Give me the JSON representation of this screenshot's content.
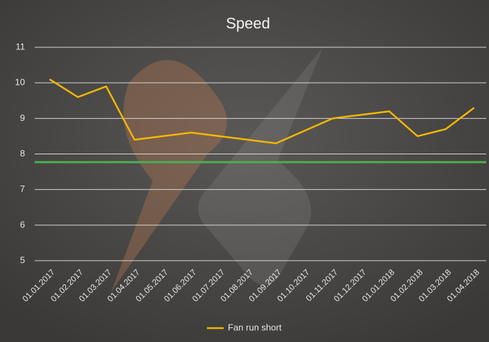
{
  "chart_data": {
    "type": "line",
    "title": "Speed",
    "categories": [
      "01.01.2017",
      "01.02.2017",
      "01.03.2017",
      "01.04.2017",
      "01.05.2017",
      "01.06.2017",
      "01.07.2017",
      "01.08.2017",
      "01.09.2017",
      "01.10.2017",
      "01.11.2017",
      "01.12.2017",
      "01.01.2018",
      "01.02.2018",
      "01.03.2018",
      "01.04.2018"
    ],
    "series": [
      {
        "name": "Fan run short",
        "color": "#f5b800",
        "values": [
          10.1,
          9.6,
          9.9,
          8.4,
          8.5,
          8.6,
          8.5,
          8.4,
          8.3,
          8.65,
          9.0,
          9.1,
          9.2,
          8.5,
          8.7,
          9.3
        ]
      }
    ],
    "reference_line": {
      "value": 7.77,
      "color": "#4caf50"
    },
    "ylim": [
      5,
      11
    ],
    "yticks": [
      5,
      6,
      7,
      8,
      9,
      10,
      11
    ],
    "grid": true,
    "legend": "bottom"
  }
}
